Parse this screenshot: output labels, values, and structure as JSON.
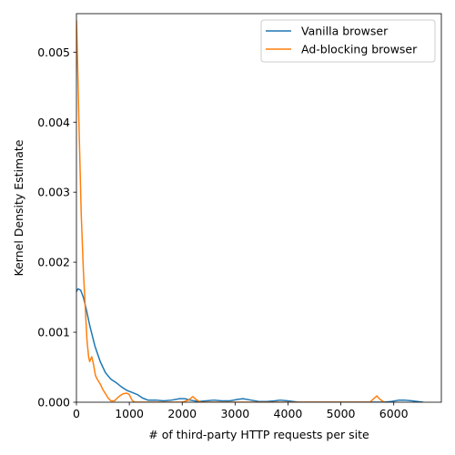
{
  "chart_data": {
    "type": "line",
    "xlabel": "# of third-party HTTP requests per site",
    "ylabel": "Kernel Density Estimate",
    "xlim": [
      0,
      6900
    ],
    "ylim": [
      0,
      0.00555
    ],
    "x_ticks": [
      0,
      1000,
      2000,
      3000,
      4000,
      5000,
      6000
    ],
    "x_tick_labels": [
      "0",
      "1000",
      "2000",
      "3000",
      "4000",
      "5000",
      "6000"
    ],
    "y_ticks": [
      0,
      0.001,
      0.002,
      0.003,
      0.004,
      0.005
    ],
    "y_tick_labels": [
      "0.000",
      "0.001",
      "0.002",
      "0.003",
      "0.004",
      "0.005"
    ],
    "grid": false,
    "legend_position": "upper right",
    "series": [
      {
        "name": "Vanilla browser",
        "color": "#1f77b4",
        "points": [
          [
            0,
            0.00158
          ],
          [
            30,
            0.00162
          ],
          [
            80,
            0.0016
          ],
          [
            130,
            0.0015
          ],
          [
            180,
            0.00135
          ],
          [
            250,
            0.0011
          ],
          [
            350,
            0.0008
          ],
          [
            450,
            0.00058
          ],
          [
            550,
            0.00042
          ],
          [
            650,
            0.00033
          ],
          [
            750,
            0.00028
          ],
          [
            850,
            0.00022
          ],
          [
            950,
            0.00017
          ],
          [
            1050,
            0.00014
          ],
          [
            1150,
            0.00011
          ],
          [
            1250,
            6e-05
          ],
          [
            1350,
            3e-05
          ],
          [
            1500,
            3e-05
          ],
          [
            1650,
            2e-05
          ],
          [
            1800,
            3e-05
          ],
          [
            1950,
            5e-05
          ],
          [
            2050,
            5e-05
          ],
          [
            2150,
            3e-05
          ],
          [
            2300,
            1e-05
          ],
          [
            2450,
            2e-05
          ],
          [
            2600,
            3e-05
          ],
          [
            2750,
            2e-05
          ],
          [
            2900,
            2e-05
          ],
          [
            3050,
            4e-05
          ],
          [
            3150,
            5e-05
          ],
          [
            3300,
            3e-05
          ],
          [
            3450,
            1e-05
          ],
          [
            3600,
            1e-05
          ],
          [
            3750,
            2e-05
          ],
          [
            3850,
            3e-05
          ],
          [
            4000,
            2e-05
          ],
          [
            4200,
            0.0
          ],
          [
            4600,
            0.0
          ],
          [
            5000,
            0.0
          ],
          [
            5400,
            0.0
          ],
          [
            5800,
            0.0
          ],
          [
            5950,
            1e-05
          ],
          [
            6100,
            3e-05
          ],
          [
            6200,
            3e-05
          ],
          [
            6350,
            2e-05
          ],
          [
            6550,
            0.0
          ]
        ]
      },
      {
        "name": "Ad-blocking browser",
        "color": "#ff7f0e",
        "points": [
          [
            0,
            0.00545
          ],
          [
            20,
            0.0049
          ],
          [
            50,
            0.0039
          ],
          [
            90,
            0.0027
          ],
          [
            130,
            0.0019
          ],
          [
            170,
            0.0013
          ],
          [
            200,
            0.00088
          ],
          [
            230,
            0.00065
          ],
          [
            250,
            0.00058
          ],
          [
            290,
            0.00065
          ],
          [
            320,
            0.00055
          ],
          [
            360,
            0.00038
          ],
          [
            400,
            0.00032
          ],
          [
            450,
            0.00026
          ],
          [
            500,
            0.00018
          ],
          [
            550,
            0.00012
          ],
          [
            600,
            6e-05
          ],
          [
            650,
            2e-05
          ],
          [
            720,
            2e-05
          ],
          [
            800,
            8e-05
          ],
          [
            880,
            0.00012
          ],
          [
            950,
            0.00013
          ],
          [
            1000,
            0.00011
          ],
          [
            1050,
            3e-05
          ],
          [
            1100,
            0.0
          ],
          [
            1500,
            0.0
          ],
          [
            2000,
            0.0
          ],
          [
            2120,
            3e-05
          ],
          [
            2200,
            8e-05
          ],
          [
            2260,
            4e-05
          ],
          [
            2350,
            0.0
          ],
          [
            3000,
            0.0
          ],
          [
            4000,
            0.0
          ],
          [
            5000,
            0.0
          ],
          [
            5550,
            0.0
          ],
          [
            5620,
            5e-05
          ],
          [
            5680,
            9e-05
          ],
          [
            5740,
            4e-05
          ],
          [
            5820,
            0.0
          ]
        ]
      }
    ]
  }
}
